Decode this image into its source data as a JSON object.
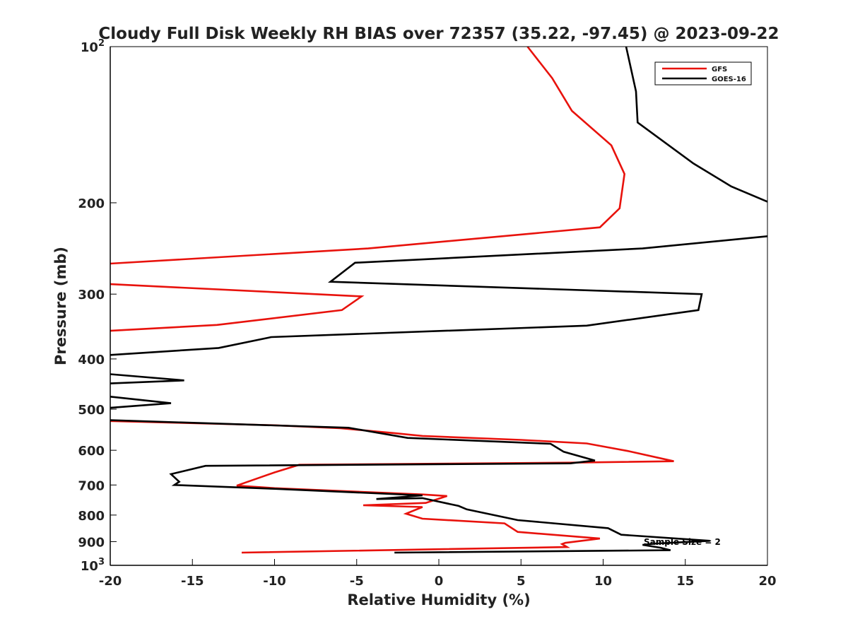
{
  "chart_data": {
    "type": "line",
    "title": "Cloudy Full Disk Weekly RH BIAS over 72357 (35.22, -97.45) @ 2023-09-22",
    "xlabel": "Relative Humidity (%)",
    "ylabel": "Pressure (mb)",
    "xlim": [
      -20,
      20
    ],
    "ylim": [
      100,
      1000
    ],
    "yscale": "log",
    "y_reversed": true,
    "grid": false,
    "legend_position": "top-right",
    "x_ticks": [
      "-20",
      "-15",
      "-10",
      "-5",
      "0",
      "5",
      "10",
      "15",
      "20"
    ],
    "y_ticks": [
      {
        "value": 100,
        "label": "10",
        "sup": "2"
      },
      {
        "value": 200,
        "label": "200",
        "sup": ""
      },
      {
        "value": 300,
        "label": "300",
        "sup": ""
      },
      {
        "value": 400,
        "label": "400",
        "sup": ""
      },
      {
        "value": 500,
        "label": "500",
        "sup": ""
      },
      {
        "value": 600,
        "label": "600",
        "sup": ""
      },
      {
        "value": 700,
        "label": "700",
        "sup": ""
      },
      {
        "value": 800,
        "label": "800",
        "sup": ""
      },
      {
        "value": 900,
        "label": "900",
        "sup": ""
      },
      {
        "value": 1000,
        "label": "10",
        "sup": "3"
      }
    ],
    "annotation": "Sample Size = 2",
    "series": [
      {
        "name": "GFS",
        "color": "#e8120c",
        "segments": [
          [
            [
              5.4,
              100
            ],
            [
              6.9,
              115
            ],
            [
              8.1,
              133
            ],
            [
              10.5,
              155
            ],
            [
              11.3,
              176
            ],
            [
              11.0,
              205
            ],
            [
              9.8,
              223
            ],
            [
              -4.3,
              245
            ],
            [
              -20,
              262
            ]
          ],
          [
            [
              -20,
              287
            ],
            [
              -4.7,
              303
            ],
            [
              -5.9,
              322
            ],
            [
              -13.5,
              344
            ],
            [
              -20,
              353
            ]
          ],
          [
            [
              -20,
              527
            ],
            [
              -10,
              537
            ],
            [
              -6,
              544
            ],
            [
              -2.7,
              556
            ],
            [
              -1,
              563
            ],
            [
              5,
              573
            ],
            [
              9,
              582
            ],
            [
              11.5,
              602
            ],
            [
              14.3,
              630
            ],
            [
              8,
              634
            ],
            [
              -8.5,
              640
            ],
            [
              -10,
              662
            ],
            [
              -12.3,
              702
            ],
            [
              -10,
              710
            ],
            [
              -1,
              730
            ],
            [
              0.5,
              735
            ],
            [
              -0.8,
              758
            ],
            [
              -4.6,
              766
            ],
            [
              -1,
              772
            ],
            [
              -2,
              795
            ],
            [
              -1,
              813
            ],
            [
              4,
              830
            ],
            [
              4.8,
              862
            ],
            [
              9.8,
              888
            ],
            [
              7.7,
              905
            ],
            [
              7.5,
              910
            ],
            [
              7.8,
              922
            ],
            [
              -12,
              945
            ]
          ]
        ]
      },
      {
        "name": "GOES-16",
        "color": "#000000",
        "segments": [
          [
            [
              11.4,
              100
            ],
            [
              12.0,
              122
            ],
            [
              12.1,
              140
            ],
            [
              15.5,
              168
            ],
            [
              17.8,
              186
            ],
            [
              20,
              199
            ]
          ],
          [
            [
              20,
              232
            ],
            [
              12.4,
              245
            ],
            [
              -5.1,
              261
            ],
            [
              -6.6,
              284
            ],
            [
              16,
              300
            ],
            [
              15.8,
              322
            ],
            [
              9,
              345
            ],
            [
              -10.2,
              363
            ],
            [
              -13.4,
              381
            ],
            [
              -20,
              393
            ]
          ],
          [
            [
              -20,
              428
            ],
            [
              -15.5,
              440
            ],
            [
              -20,
              446
            ]
          ],
          [
            [
              -20,
              473
            ],
            [
              -16.3,
              487
            ],
            [
              -20,
              497
            ]
          ],
          [
            [
              -20,
              525
            ],
            [
              -5.5,
              543
            ],
            [
              -1.9,
              568
            ],
            [
              6.8,
              583
            ],
            [
              7.6,
              604
            ],
            [
              9.5,
              628
            ],
            [
              8,
              636
            ],
            [
              -14.2,
              643
            ],
            [
              -16.3,
              667
            ],
            [
              -15.8,
              690
            ],
            [
              -16.1,
              700
            ],
            [
              -10,
              712
            ],
            [
              -1,
              733
            ],
            [
              -3.8,
              745
            ],
            [
              -1,
              742
            ],
            [
              1.2,
              768
            ],
            [
              1.7,
              780
            ],
            [
              4.8,
              818
            ],
            [
              10.3,
              848
            ],
            [
              11.1,
              873
            ],
            [
              16.5,
              897
            ],
            [
              13.2,
              908
            ],
            [
              12.4,
              913
            ],
            [
              13.5,
              925
            ],
            [
              14.1,
              935
            ],
            [
              -2.7,
              945
            ]
          ]
        ]
      }
    ]
  }
}
